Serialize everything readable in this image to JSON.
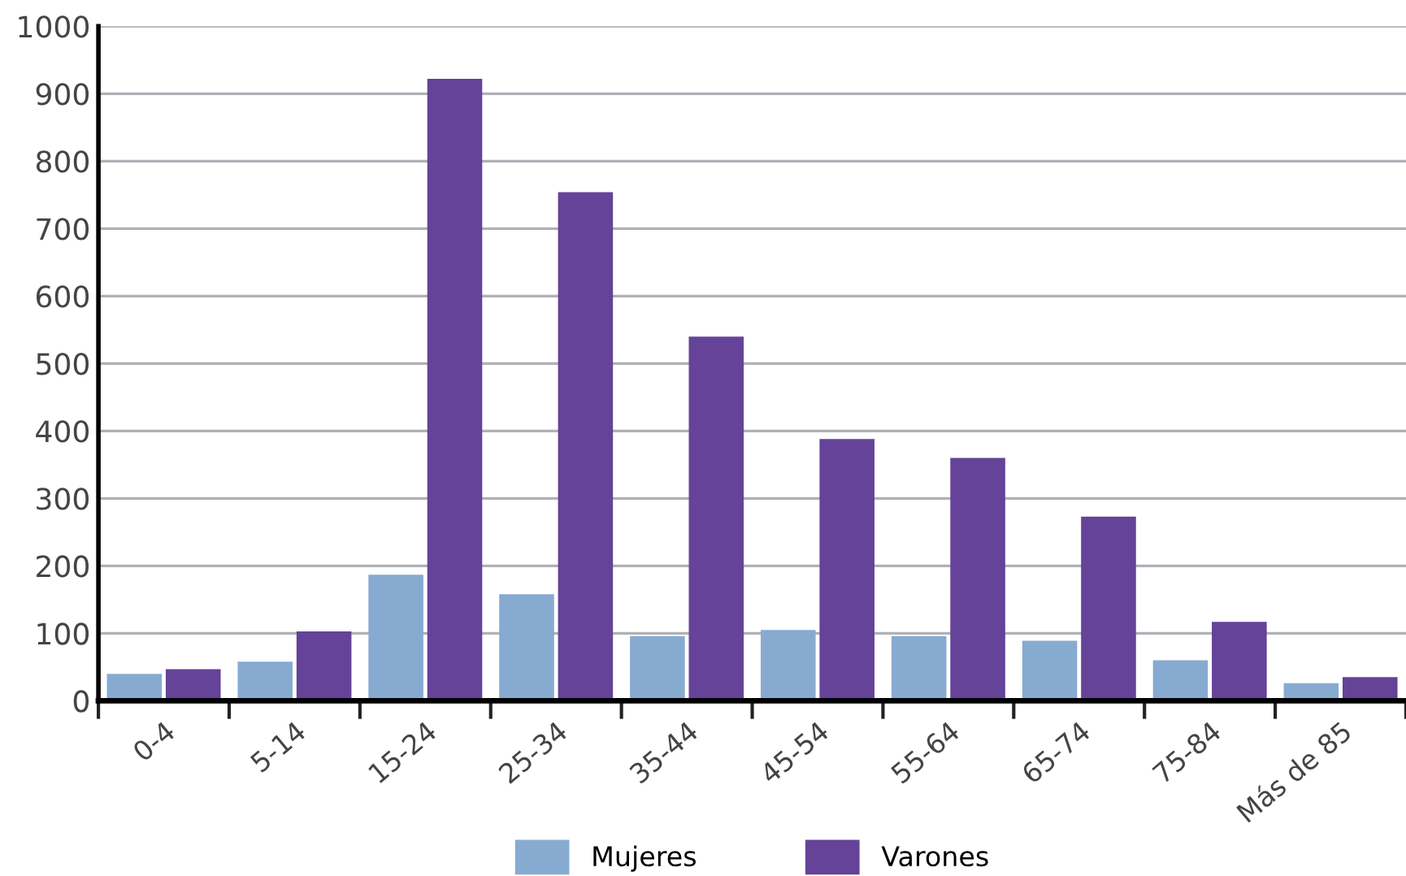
{
  "chart_data": {
    "type": "bar",
    "categories": [
      "0-4",
      "5-14",
      "15-24",
      "25-34",
      "35-44",
      "45-54",
      "55-64",
      "65-74",
      "75-84",
      "Más de 85"
    ],
    "series": [
      {
        "name": "Mujeres",
        "color": "#87abd0",
        "values": [
          40,
          58,
          187,
          158,
          96,
          105,
          96,
          89,
          60,
          26
        ]
      },
      {
        "name": "Varones",
        "color": "#644399",
        "values": [
          47,
          103,
          922,
          754,
          540,
          388,
          360,
          273,
          117,
          35
        ]
      }
    ],
    "ylim": [
      0,
      1000
    ],
    "yticks": [
      0,
      100,
      200,
      300,
      400,
      500,
      600,
      700,
      800,
      900,
      1000
    ],
    "grid": "y",
    "legend": "bottom"
  }
}
